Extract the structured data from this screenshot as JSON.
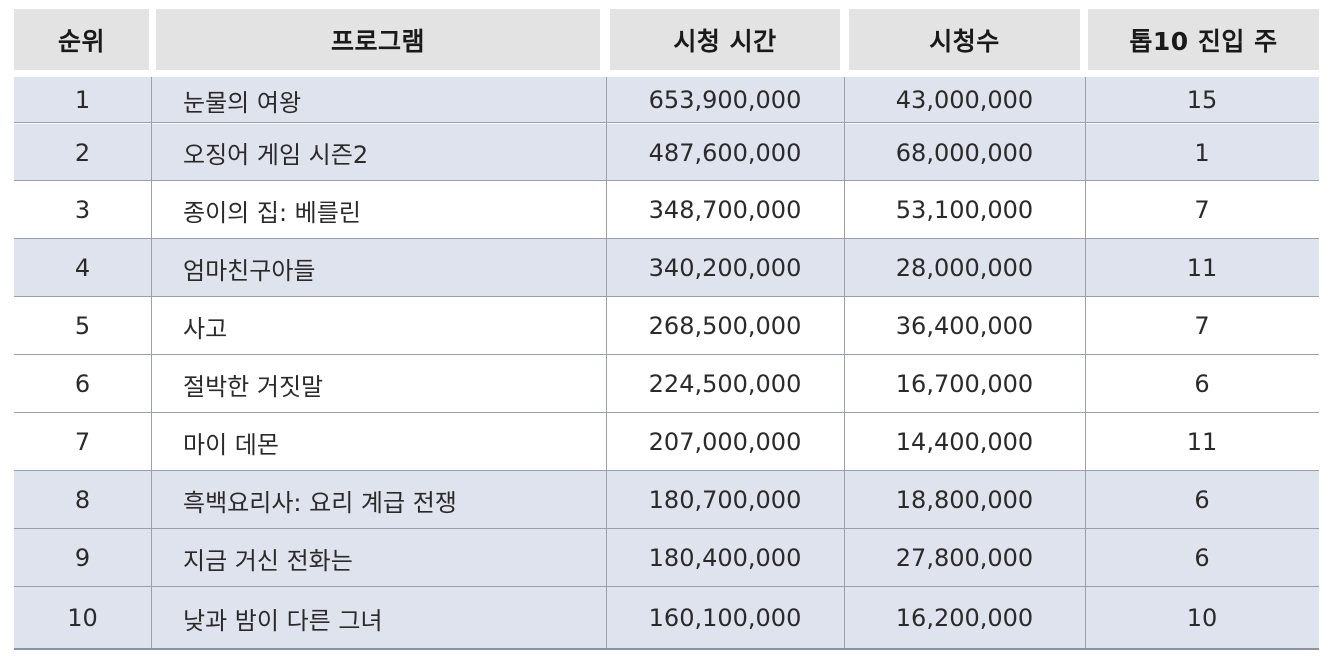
{
  "table": {
    "headers": {
      "rank": "순위",
      "program": "프로그램",
      "view_hours": "시청 시간",
      "views": "시청수",
      "weeks_top10": "톱10 진입 주"
    },
    "rows": [
      {
        "rank": "1",
        "program": "눈물의 여왕",
        "view_hours": "653,900,000",
        "views": "43,000,000",
        "weeks_top10": "15",
        "shaded": true
      },
      {
        "rank": "2",
        "program": "오징어 게임 시즌2",
        "view_hours": "487,600,000",
        "views": "68,000,000",
        "weeks_top10": "1",
        "shaded": true
      },
      {
        "rank": "3",
        "program": "종이의 집: 베를린",
        "view_hours": "348,700,000",
        "views": "53,100,000",
        "weeks_top10": "7",
        "shaded": false
      },
      {
        "rank": "4",
        "program": "엄마친구아들",
        "view_hours": "340,200,000",
        "views": "28,000,000",
        "weeks_top10": "11",
        "shaded": true
      },
      {
        "rank": "5",
        "program": "사고",
        "view_hours": "268,500,000",
        "views": "36,400,000",
        "weeks_top10": "7",
        "shaded": false
      },
      {
        "rank": "6",
        "program": "절박한 거짓말",
        "view_hours": "224,500,000",
        "views": "16,700,000",
        "weeks_top10": "6",
        "shaded": false
      },
      {
        "rank": "7",
        "program": "마이 데몬",
        "view_hours": "207,000,000",
        "views": "14,400,000",
        "weeks_top10": "11",
        "shaded": false
      },
      {
        "rank": "8",
        "program": "흑백요리사: 요리 계급 전쟁",
        "view_hours": "180,700,000",
        "views": "18,800,000",
        "weeks_top10": "6",
        "shaded": true
      },
      {
        "rank": "9",
        "program": "지금 거신 전화는",
        "view_hours": "180,400,000",
        "views": "27,800,000",
        "weeks_top10": "6",
        "shaded": true
      },
      {
        "rank": "10",
        "program": "낮과 밤이 다른 그녀",
        "view_hours": "160,100,000",
        "views": "16,200,000",
        "weeks_top10": "10",
        "shaded": true
      }
    ]
  },
  "colors": {
    "header_bg": "#e3e3e3",
    "shaded_row_bg": "#dfe3ee",
    "plain_row_bg": "#ffffff",
    "rule": "#9aa0aa"
  }
}
